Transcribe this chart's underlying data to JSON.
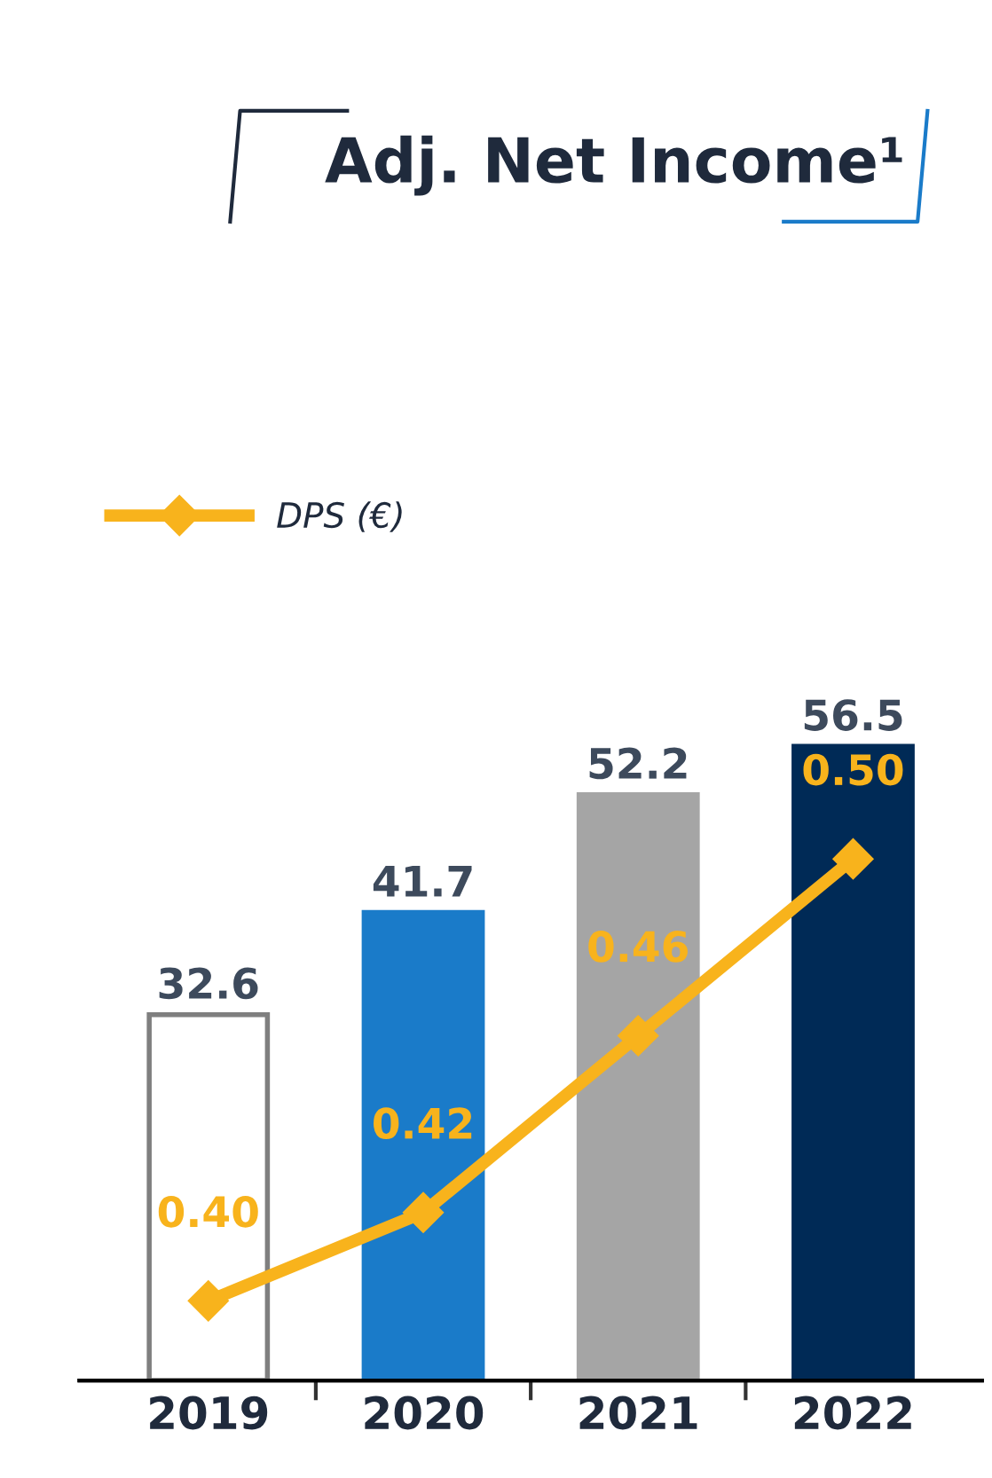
{
  "chart_data": {
    "type": "bar",
    "title": "Adj. Net Income¹",
    "categories": [
      "2019",
      "2020",
      "2021",
      "2022"
    ],
    "series": [
      {
        "colors": [
          "#ffffff",
          "#1a7bc9",
          "#a5a5a5",
          "#002a56"
        ],
        "values": [
          32.6,
          41.7,
          52.2,
          56.5
        ]
      },
      {
        "type": "line",
        "name": "DPS (€)",
        "color": "#f8b31c",
        "axis": "y2",
        "values": [
          0.4,
          0.42,
          0.46,
          0.5
        ],
        "value_labels": [
          "0.40",
          "0.42",
          "0.46",
          "0.50"
        ]
      }
    ],
    "data_labels": true,
    "tick_labels": "x",
    "grid": false,
    "legend": "top left",
    "marker": "diamond",
    "line_style": "solid"
  }
}
